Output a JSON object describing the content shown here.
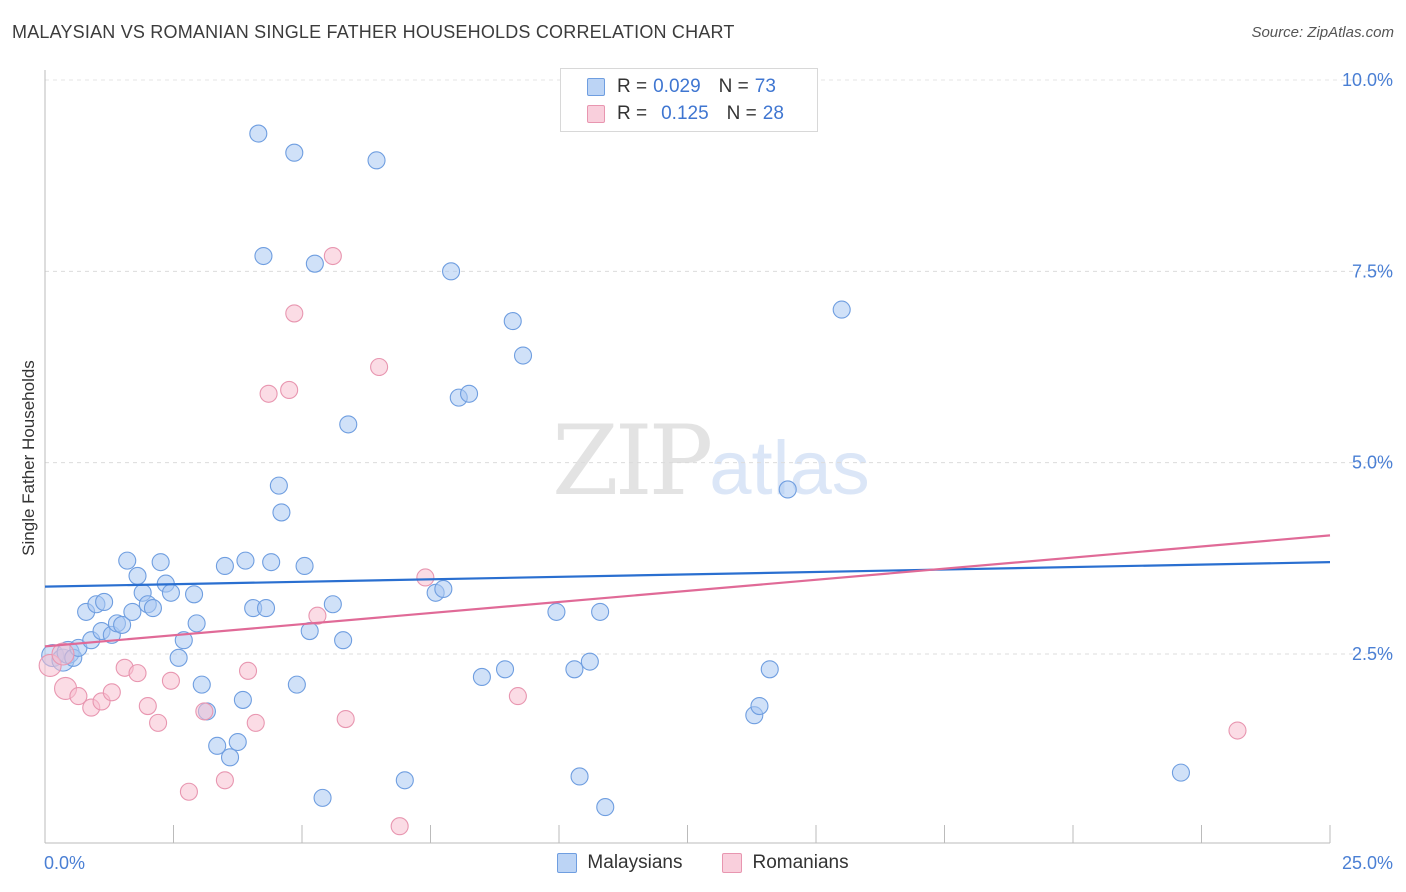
{
  "title": "MALAYSIAN VS ROMANIAN SINGLE FATHER HOUSEHOLDS CORRELATION CHART",
  "source": "Source: ZipAtlas.com",
  "watermark": {
    "zip": "ZIP",
    "atlas": "atlas"
  },
  "legend": {
    "r_label": "R =",
    "n_label": "N =",
    "rows": [
      {
        "r": "0.029",
        "n": "73"
      },
      {
        "r": "0.125",
        "n": "28"
      }
    ]
  },
  "colors": {
    "blue_fill": "#a9c8f2",
    "blue_stroke": "#6f9ee0",
    "blue_line": "#2a6fd0",
    "pink_fill": "#f7c0d0",
    "pink_stroke": "#e896b0",
    "pink_line": "#e06a97",
    "tick_text": "#4a7fd4"
  },
  "chart_data": {
    "type": "scatter",
    "title": "MALAYSIAN VS ROMANIAN SINGLE FATHER HOUSEHOLDS CORRELATION CHART",
    "xlabel": "",
    "ylabel": "Single Father Households",
    "xlim": [
      0,
      25
    ],
    "ylim": [
      0,
      10.5
    ],
    "x_tick_labels": [
      "0.0%",
      "25.0%"
    ],
    "y_ticks": [
      {
        "value": 10.0,
        "label": "10.0%"
      },
      {
        "value": 7.5,
        "label": "7.5%"
      },
      {
        "value": 5.0,
        "label": "5.0%"
      },
      {
        "value": 2.5,
        "label": "2.5%"
      }
    ],
    "series": [
      {
        "name": "Malaysians",
        "r": 0.029,
        "n": 73,
        "trend": {
          "x0": 0,
          "y0": 3.38,
          "x1": 25,
          "y1": 3.7
        },
        "points": [
          [
            0.15,
            2.48
          ],
          [
            0.35,
            2.42
          ],
          [
            0.45,
            2.52
          ],
          [
            0.55,
            2.45
          ],
          [
            0.65,
            2.58
          ],
          [
            0.8,
            3.05
          ],
          [
            0.9,
            2.68
          ],
          [
            1.0,
            3.15
          ],
          [
            1.1,
            2.8
          ],
          [
            1.15,
            3.18
          ],
          [
            1.3,
            2.75
          ],
          [
            1.4,
            2.9
          ],
          [
            1.5,
            2.88
          ],
          [
            1.6,
            3.72
          ],
          [
            1.7,
            3.05
          ],
          [
            1.8,
            3.52
          ],
          [
            1.9,
            3.3
          ],
          [
            2.0,
            3.15
          ],
          [
            2.1,
            3.1
          ],
          [
            2.25,
            3.7
          ],
          [
            2.35,
            3.42
          ],
          [
            2.45,
            3.3
          ],
          [
            2.6,
            2.45
          ],
          [
            2.7,
            2.68
          ],
          [
            2.9,
            3.28
          ],
          [
            2.95,
            2.9
          ],
          [
            3.05,
            2.1
          ],
          [
            3.15,
            1.75
          ],
          [
            3.35,
            1.3
          ],
          [
            3.5,
            3.65
          ],
          [
            3.6,
            1.15
          ],
          [
            3.75,
            1.35
          ],
          [
            3.85,
            1.9
          ],
          [
            3.9,
            3.72
          ],
          [
            4.05,
            3.1
          ],
          [
            4.15,
            9.3
          ],
          [
            4.25,
            7.7
          ],
          [
            4.3,
            3.1
          ],
          [
            4.4,
            3.7
          ],
          [
            4.55,
            4.7
          ],
          [
            4.6,
            4.35
          ],
          [
            4.85,
            9.05
          ],
          [
            4.9,
            2.1
          ],
          [
            5.05,
            3.65
          ],
          [
            5.15,
            2.8
          ],
          [
            5.25,
            7.6
          ],
          [
            5.4,
            0.62
          ],
          [
            5.6,
            3.15
          ],
          [
            5.8,
            2.68
          ],
          [
            5.9,
            5.5
          ],
          [
            6.45,
            8.95
          ],
          [
            7.0,
            0.85
          ],
          [
            7.6,
            3.3
          ],
          [
            7.75,
            3.35
          ],
          [
            7.9,
            7.5
          ],
          [
            8.05,
            5.85
          ],
          [
            8.25,
            5.9
          ],
          [
            8.5,
            2.2
          ],
          [
            8.95,
            2.3
          ],
          [
            9.1,
            6.85
          ],
          [
            9.3,
            6.4
          ],
          [
            9.95,
            3.05
          ],
          [
            10.3,
            2.3
          ],
          [
            10.4,
            0.9
          ],
          [
            10.6,
            2.4
          ],
          [
            10.8,
            3.05
          ],
          [
            10.9,
            0.5
          ],
          [
            13.8,
            1.7
          ],
          [
            13.9,
            1.82
          ],
          [
            14.1,
            2.3
          ],
          [
            14.45,
            4.65
          ],
          [
            15.5,
            7.0
          ],
          [
            22.1,
            0.95
          ]
        ]
      },
      {
        "name": "Romanians",
        "r": 0.125,
        "n": 28,
        "trend": {
          "x0": 0,
          "y0": 2.6,
          "x1": 25,
          "y1": 4.05
        },
        "points": [
          [
            0.1,
            2.35
          ],
          [
            0.35,
            2.5
          ],
          [
            0.4,
            2.05
          ],
          [
            0.65,
            1.95
          ],
          [
            0.9,
            1.8
          ],
          [
            1.1,
            1.88
          ],
          [
            1.3,
            2.0
          ],
          [
            1.55,
            2.32
          ],
          [
            1.8,
            2.25
          ],
          [
            2.0,
            1.82
          ],
          [
            2.2,
            1.6
          ],
          [
            2.45,
            2.15
          ],
          [
            2.8,
            0.7
          ],
          [
            3.1,
            1.75
          ],
          [
            3.5,
            0.85
          ],
          [
            3.95,
            2.28
          ],
          [
            4.1,
            1.6
          ],
          [
            4.35,
            5.9
          ],
          [
            4.75,
            5.95
          ],
          [
            4.85,
            6.95
          ],
          [
            5.3,
            3.0
          ],
          [
            5.6,
            7.7
          ],
          [
            5.85,
            1.65
          ],
          [
            6.5,
            6.25
          ],
          [
            6.9,
            0.25
          ],
          [
            7.4,
            3.5
          ],
          [
            9.2,
            1.95
          ],
          [
            23.2,
            1.5
          ]
        ]
      }
    ]
  }
}
